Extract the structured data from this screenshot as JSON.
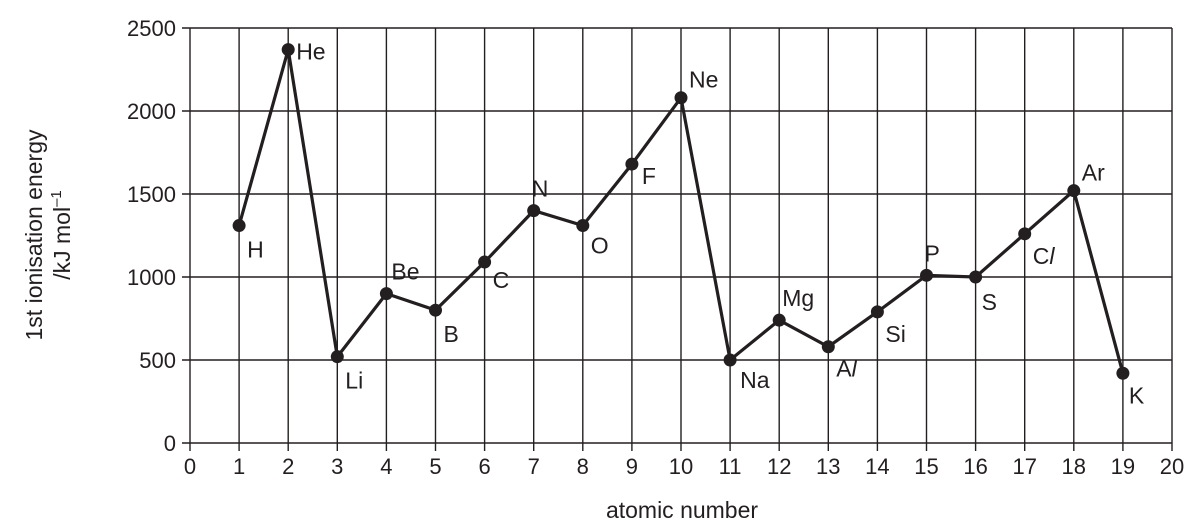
{
  "chart_data": {
    "type": "line",
    "xlabel": "atomic number",
    "ylabel": [
      "1st ionisation energy",
      "/kJ mol"
    ],
    "ylabel_superscript": "–1",
    "xlim": [
      0,
      20
    ],
    "ylim": [
      0,
      2500
    ],
    "x_ticks": [
      "0",
      "1",
      "2",
      "3",
      "4",
      "5",
      "6",
      "7",
      "8",
      "9",
      "10",
      "11",
      "12",
      "13",
      "14",
      "15",
      "16",
      "17",
      "18",
      "19",
      "20"
    ],
    "y_ticks": [
      "0",
      "500",
      "1000",
      "1500",
      "2000",
      "2500"
    ],
    "grid": true,
    "line_color": "#231f20",
    "points": [
      {
        "x": 1,
        "y": 1310,
        "label": "H"
      },
      {
        "x": 2,
        "y": 2370,
        "label": "He"
      },
      {
        "x": 3,
        "y": 520,
        "label": "Li"
      },
      {
        "x": 4,
        "y": 900,
        "label": "Be"
      },
      {
        "x": 5,
        "y": 800,
        "label": "B"
      },
      {
        "x": 6,
        "y": 1090,
        "label": "C"
      },
      {
        "x": 7,
        "y": 1400,
        "label": "N"
      },
      {
        "x": 8,
        "y": 1310,
        "label": "O"
      },
      {
        "x": 9,
        "y": 1680,
        "label": "F"
      },
      {
        "x": 10,
        "y": 2080,
        "label": "Ne"
      },
      {
        "x": 11,
        "y": 500,
        "label": "Na"
      },
      {
        "x": 12,
        "y": 740,
        "label": "Mg"
      },
      {
        "x": 13,
        "y": 580,
        "label": "Al",
        "label_italic_suffix": "l",
        "label_base": "A"
      },
      {
        "x": 14,
        "y": 790,
        "label": "Si"
      },
      {
        "x": 15,
        "y": 1010,
        "label": "P"
      },
      {
        "x": 16,
        "y": 1000,
        "label": "S"
      },
      {
        "x": 17,
        "y": 1260,
        "label": "Cl",
        "label_italic_suffix": "l",
        "label_base": "C"
      },
      {
        "x": 18,
        "y": 1520,
        "label": "Ar"
      },
      {
        "x": 19,
        "y": 420,
        "label": "K"
      }
    ]
  }
}
